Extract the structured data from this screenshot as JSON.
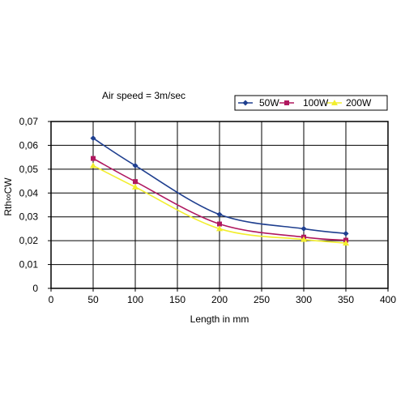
{
  "chart_data": {
    "type": "line",
    "title": "",
    "annotation": "Air speed = 3m/sec",
    "xlabel": "Length in mm",
    "ylabel": "Rth∞CW",
    "xlim": [
      0,
      400
    ],
    "ylim": [
      0,
      0.07
    ],
    "x_ticks": [
      "0",
      "50",
      "100",
      "150",
      "200",
      "250",
      "300",
      "350",
      "400"
    ],
    "y_ticks": [
      "0",
      "0,01",
      "0,02",
      "0,03",
      "0,04",
      "0,05",
      "0,06",
      "0,07"
    ],
    "grid": true,
    "legend_position": "top-right",
    "x": [
      50,
      100,
      200,
      300,
      350
    ],
    "series": [
      {
        "name": "50W",
        "values": [
          0.063,
          0.0515,
          0.031,
          0.025,
          0.023
        ],
        "color": "#1f3f8f",
        "marker": "diamond"
      },
      {
        "name": "100W",
        "values": [
          0.0545,
          0.0448,
          0.027,
          0.0215,
          0.0202
        ],
        "color": "#b0185f",
        "marker": "square"
      },
      {
        "name": "200W",
        "values": [
          0.0515,
          0.0425,
          0.025,
          0.0205,
          0.019
        ],
        "color": "#f2ee2e",
        "marker": "triangle"
      }
    ]
  }
}
